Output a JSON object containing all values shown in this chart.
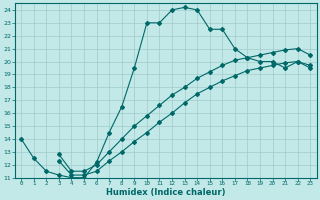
{
  "xlabel": "Humidex (Indice chaleur)",
  "bg_color": "#c2e8e8",
  "grid_color": "#a0cccc",
  "line_color": "#006868",
  "xlim": [
    -0.5,
    23.5
  ],
  "ylim": [
    11,
    24.5
  ],
  "xticks": [
    0,
    1,
    2,
    3,
    4,
    5,
    6,
    7,
    8,
    9,
    10,
    11,
    12,
    13,
    14,
    15,
    16,
    17,
    18,
    19,
    20,
    21,
    22,
    23
  ],
  "yticks": [
    11,
    12,
    13,
    14,
    15,
    16,
    17,
    18,
    19,
    20,
    21,
    22,
    23,
    24
  ],
  "curve1_x": [
    0,
    1,
    2,
    3,
    4,
    5,
    6,
    7,
    8,
    9,
    10,
    11,
    12,
    13,
    14,
    15,
    16,
    17,
    18,
    19,
    20,
    21,
    22,
    23
  ],
  "curve1_y": [
    14,
    12.5,
    11.5,
    11.2,
    11,
    11,
    12.2,
    14.5,
    16.5,
    19.5,
    23,
    23,
    24.0,
    24.2,
    24.0,
    22.5,
    22.5,
    21.0,
    20.3,
    20.0,
    20.0,
    19.5,
    20.0,
    19.7
  ],
  "curve2_x": [
    3,
    4,
    5,
    6,
    7,
    8,
    9,
    10,
    11,
    12,
    13,
    14,
    15,
    16,
    17,
    18,
    19,
    20,
    21,
    22,
    23
  ],
  "curve2_y": [
    12.3,
    11.2,
    11.2,
    11.5,
    12.3,
    13.0,
    13.8,
    14.5,
    15.3,
    16.0,
    16.8,
    17.5,
    18.0,
    18.5,
    18.9,
    19.3,
    19.5,
    19.7,
    19.9,
    20.0,
    19.5
  ],
  "curve3_x": [
    3,
    4,
    5,
    6,
    7,
    8,
    9,
    10,
    11,
    12,
    13,
    14,
    15,
    16,
    17,
    18,
    19,
    20,
    21,
    22,
    23
  ],
  "curve3_y": [
    12.8,
    11.5,
    11.5,
    12.0,
    13.0,
    14.0,
    15.0,
    15.8,
    16.6,
    17.4,
    18.0,
    18.7,
    19.2,
    19.7,
    20.1,
    20.3,
    20.5,
    20.7,
    20.9,
    21.0,
    20.5
  ]
}
